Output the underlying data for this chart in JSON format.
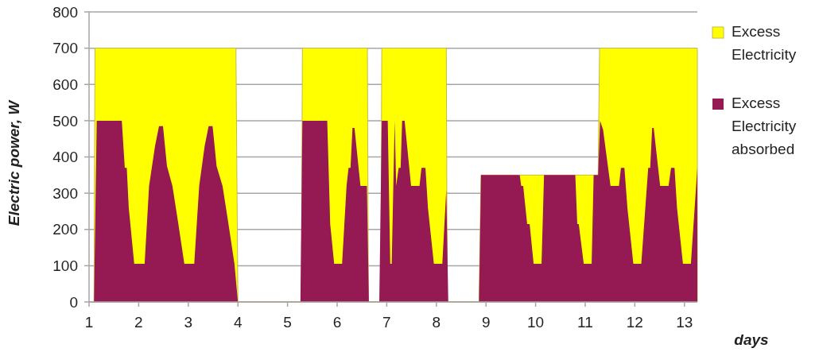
{
  "chart_data": {
    "type": "area",
    "xlabel": "days",
    "ylabel": "Electric power, W",
    "xlim": [
      1,
      13.26
    ],
    "xticks": [
      1,
      2,
      3,
      4,
      5,
      6,
      7,
      8,
      9,
      10,
      11,
      12,
      13
    ],
    "ylim": [
      0,
      800
    ],
    "yticks": [
      0,
      100,
      200,
      300,
      400,
      500,
      600,
      700,
      800
    ],
    "grid": "y",
    "legend": "right",
    "series": [
      {
        "name": "Excess Electricity",
        "color": "#ffff00",
        "x": [
          1.1,
          1.12,
          3.96,
          4.0,
          5.28,
          5.3,
          6.61,
          6.63,
          6.88,
          6.9,
          8.2,
          8.22,
          8.86,
          8.9,
          11.26,
          11.29,
          13.26
        ],
        "values": [
          0,
          700,
          700,
          0,
          0,
          700,
          700,
          0,
          0,
          700,
          700,
          0,
          0,
          350,
          350,
          700,
          700
        ]
      },
      {
        "name": "Excess Electricity absorbed",
        "color": "#951952",
        "x": [
          1.1,
          1.155,
          1.66,
          1.72,
          1.76,
          1.8,
          1.91,
          2.12,
          2.21,
          2.33,
          2.41,
          2.49,
          2.57,
          2.68,
          2.8,
          2.92,
          3.12,
          3.22,
          3.33,
          3.41,
          3.49,
          3.57,
          3.69,
          3.81,
          3.93,
          4.0,
          5.26,
          5.3,
          5.8,
          5.86,
          5.94,
          6.1,
          6.19,
          6.23,
          6.27,
          6.31,
          6.35,
          6.47,
          6.6,
          6.64,
          6.85,
          6.9,
          7.02,
          7.07,
          7.1,
          7.16,
          7.19,
          7.24,
          7.28,
          7.31,
          7.36,
          7.49,
          7.66,
          7.7,
          7.78,
          7.83,
          7.95,
          8.12,
          8.2,
          8.24,
          8.86,
          8.9,
          9.68,
          9.71,
          9.75,
          9.83,
          9.88,
          9.96,
          10.12,
          10.17,
          10.8,
          10.84,
          10.87,
          10.97,
          11.13,
          11.17,
          11.26,
          11.3,
          11.36,
          11.51,
          11.68,
          11.72,
          11.79,
          11.85,
          11.97,
          12.13,
          12.27,
          12.31,
          12.35,
          12.38,
          12.51,
          12.68,
          12.73,
          12.8,
          12.85,
          12.97,
          13.13,
          13.26
        ],
        "values": [
          0,
          500,
          500,
          370,
          370,
          260,
          105,
          105,
          320,
          430,
          485,
          485,
          375,
          320,
          215,
          105,
          105,
          320,
          430,
          485,
          485,
          375,
          320,
          215,
          105,
          0,
          0,
          500,
          500,
          215,
          105,
          105,
          320,
          370,
          370,
          480,
          480,
          320,
          320,
          0,
          0,
          500,
          500,
          105,
          105,
          500,
          320,
          370,
          370,
          500,
          500,
          320,
          320,
          370,
          370,
          260,
          105,
          105,
          310,
          0,
          0,
          350,
          350,
          320,
          320,
          215,
          215,
          105,
          105,
          350,
          350,
          215,
          215,
          105,
          105,
          350,
          350,
          500,
          475,
          320,
          320,
          370,
          370,
          260,
          105,
          105,
          370,
          370,
          480,
          480,
          320,
          320,
          370,
          370,
          260,
          105,
          105,
          370
        ]
      }
    ]
  }
}
